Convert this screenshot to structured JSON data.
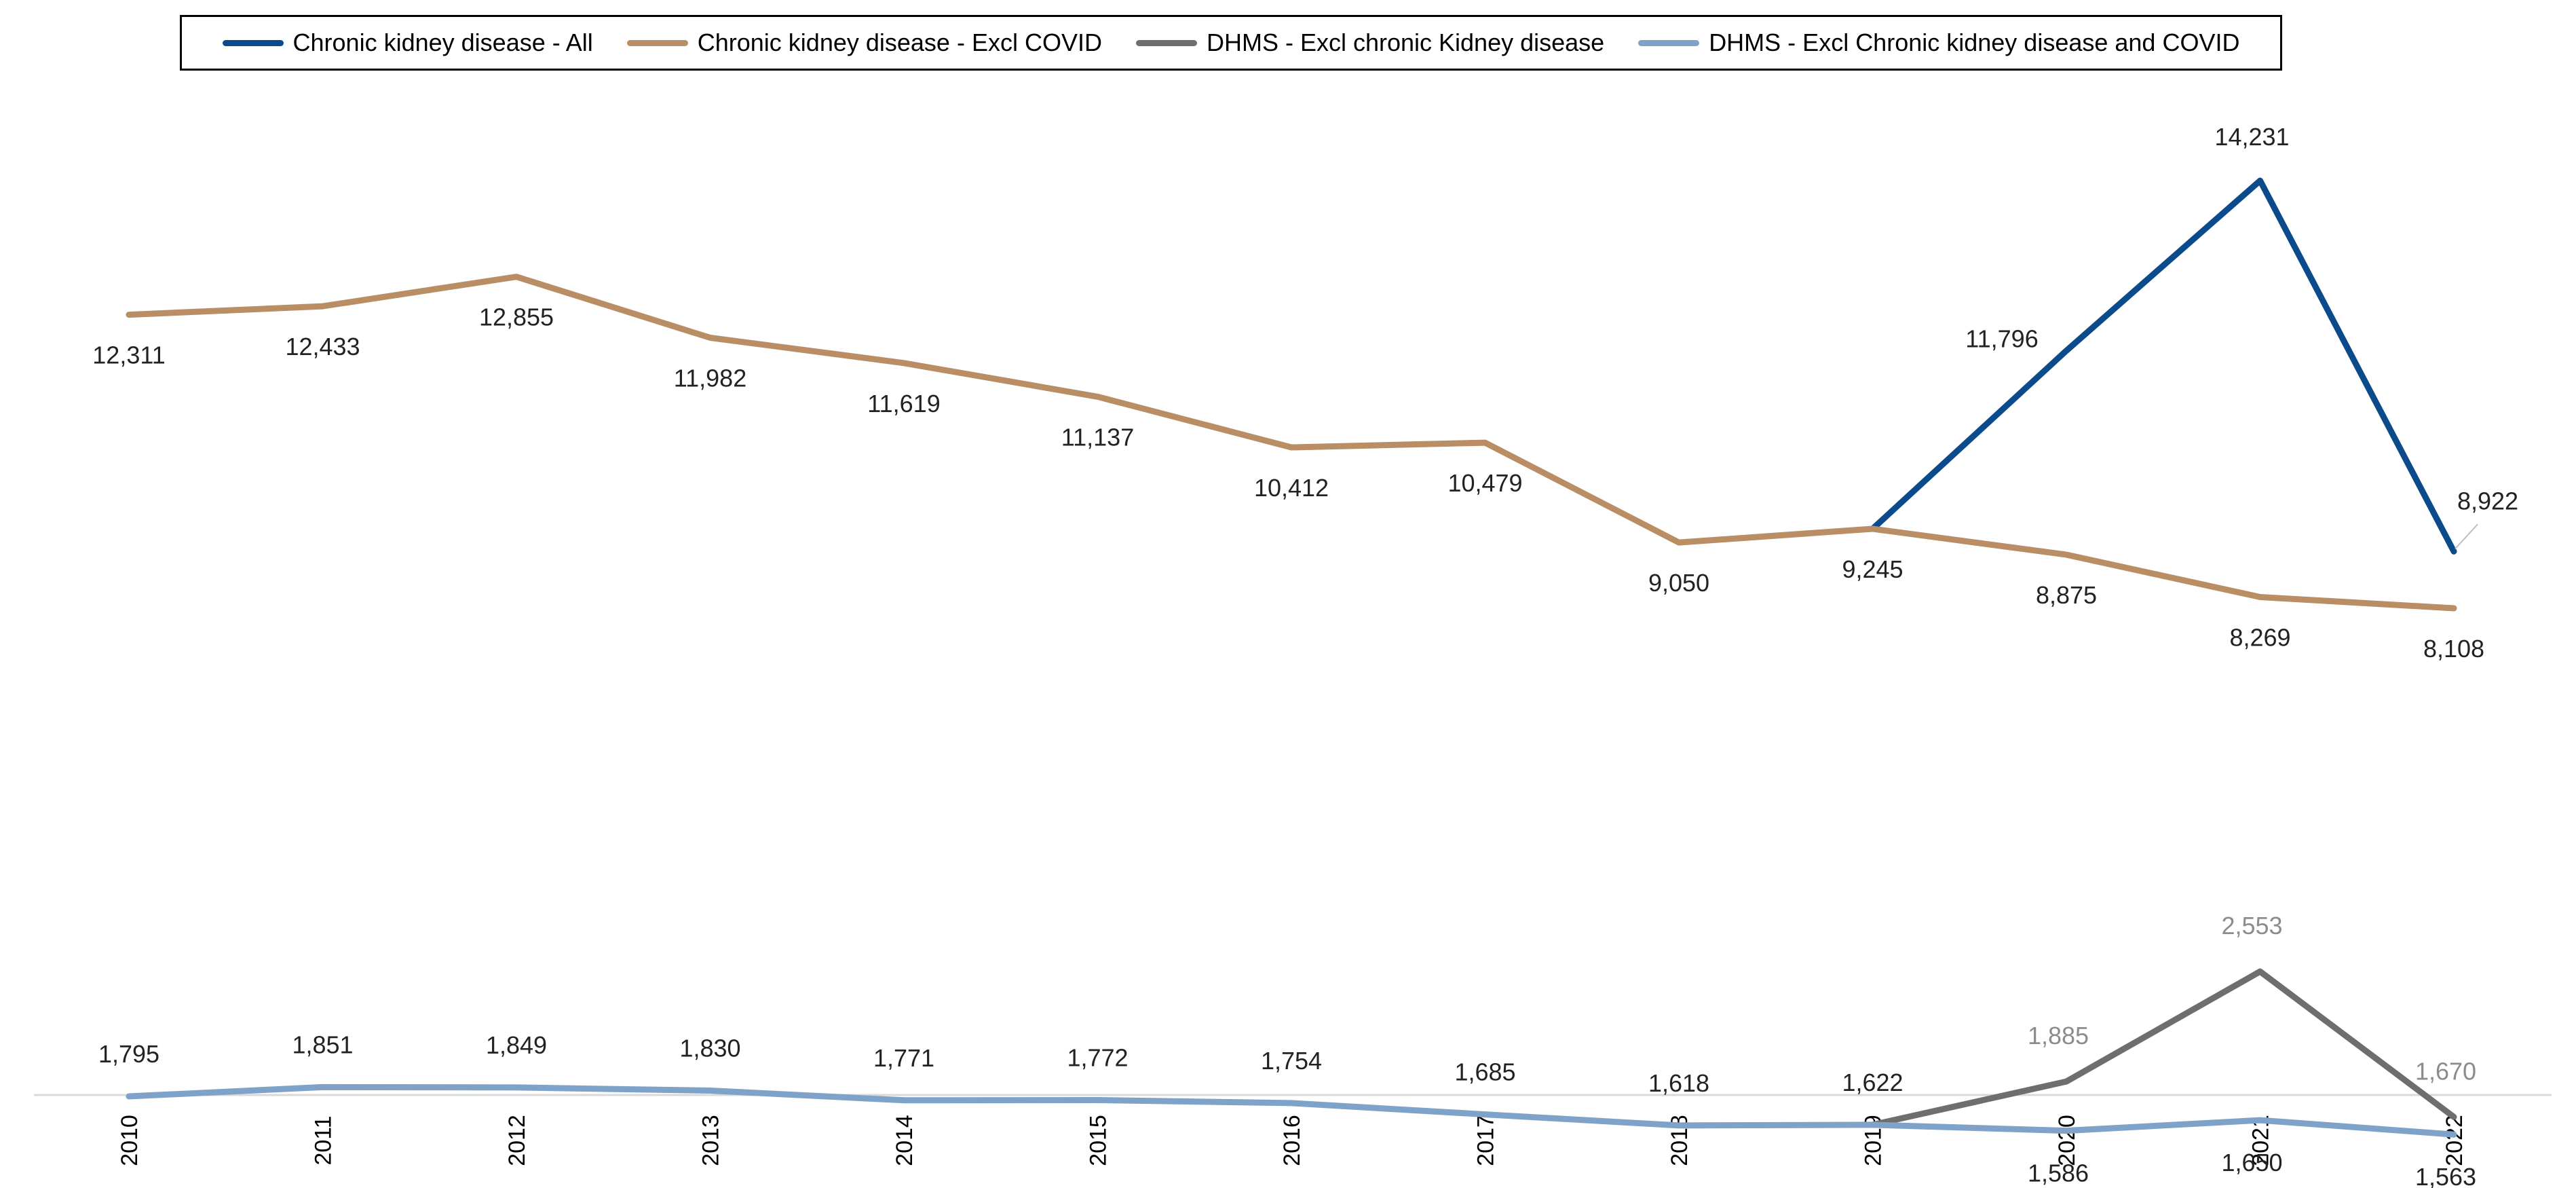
{
  "chart_data": {
    "type": "line",
    "categories": [
      "2010",
      "2011",
      "2012",
      "2013",
      "2014",
      "2015",
      "2016",
      "2017",
      "2018",
      "2019",
      "2020",
      "2021",
      "2022"
    ],
    "series": [
      {
        "name": "Chronic kidney disease - All",
        "color": "#0b4a8b",
        "values": [
          null,
          null,
          null,
          null,
          null,
          null,
          null,
          null,
          null,
          9245,
          11796,
          14231,
          8922
        ],
        "labels": [
          null,
          null,
          null,
          null,
          null,
          null,
          null,
          null,
          null,
          null,
          "11,796",
          "14,231",
          "8,922"
        ]
      },
      {
        "name": "Chronic kidney disease - Excl COVID",
        "color": "#b98e64",
        "values": [
          12311,
          12433,
          12855,
          11982,
          11619,
          11137,
          10412,
          10479,
          9050,
          9245,
          8875,
          8269,
          8108
        ],
        "labels": [
          "12,311",
          "12,433",
          "12,855",
          "11,982",
          "11,619",
          "11,137",
          "10,412",
          "10,479",
          "9,050",
          "9,245",
          "8,875",
          "8,269",
          "8,108"
        ]
      },
      {
        "name": "DHMS - Excl chronic Kidney disease",
        "color": "#6e6e6e",
        "values": [
          null,
          null,
          null,
          null,
          null,
          null,
          null,
          null,
          null,
          1622,
          1885,
          2553,
          1670
        ],
        "labels": [
          null,
          null,
          null,
          null,
          null,
          null,
          null,
          null,
          null,
          null,
          "1,885",
          "2,553",
          "1,670"
        ]
      },
      {
        "name": "DHMS - Excl Chronic kidney disease and COVID",
        "color": "#7fa3c8",
        "values": [
          1795,
          1851,
          1849,
          1830,
          1771,
          1772,
          1754,
          1685,
          1618,
          1622,
          1586,
          1650,
          1563
        ],
        "labels": [
          "1,795",
          "1,851",
          "1,849",
          "1,830",
          "1,771",
          "1,772",
          "1,754",
          "1,685",
          "1,618",
          "1,622",
          "1,586",
          "1,650",
          "1,563"
        ]
      }
    ],
    "ylim": [
      0,
      16000
    ],
    "grid": false,
    "legend": "top",
    "title": "",
    "xlabel": "",
    "ylabel": ""
  }
}
